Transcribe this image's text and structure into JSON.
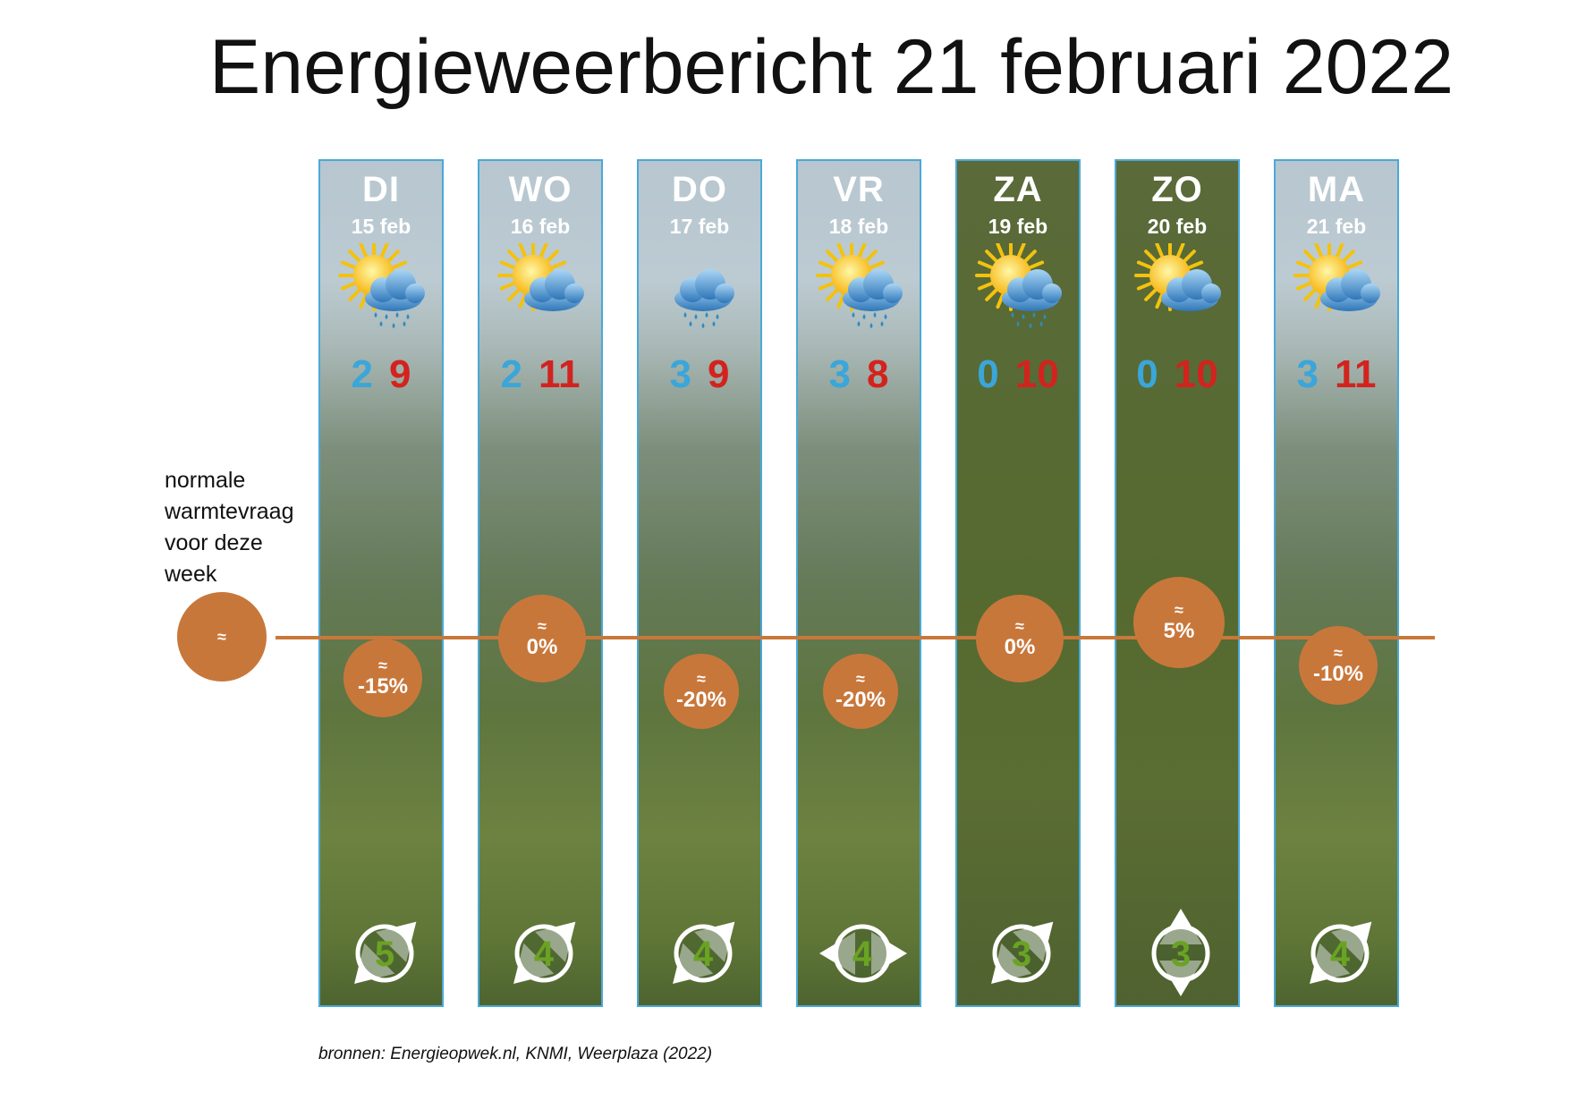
{
  "title": "Energieweerbericht 21 februari 2022",
  "normal_label": [
    "normale",
    "warmtevraag",
    "voor deze",
    "week"
  ],
  "normal_bubble": "≈",
  "approx_symbol": "≈",
  "source": "bronnen: Energieopwek.nl, KNMI, Weerplaza (2022)",
  "colors": {
    "tmin": "#3aa6d9",
    "tmax": "#d2231f",
    "bubble": "#c8773b",
    "wind_number": "#6aa323",
    "border": "#4aa9d8"
  },
  "days": [
    {
      "day": "DI",
      "date": "15 feb",
      "icon": "sun-cloud-rain-icon",
      "rain": true,
      "tmin": "2",
      "tmax": "9",
      "demand": "-15%",
      "demand_value": -15,
      "wind": "5",
      "wind_dir": "southwest",
      "weekend": false
    },
    {
      "day": "WO",
      "date": "16 feb",
      "icon": "sun-cloud-icon",
      "rain": false,
      "tmin": "2",
      "tmax": "11",
      "demand": "0%",
      "demand_value": 0,
      "wind": "4",
      "wind_dir": "southwest",
      "weekend": false
    },
    {
      "day": "DO",
      "date": "17 feb",
      "icon": "cloud-rain-icon",
      "rain": true,
      "tmin": "3",
      "tmax": "9",
      "demand": "-20%",
      "demand_value": -20,
      "wind": "4",
      "wind_dir": "southwest",
      "weekend": false
    },
    {
      "day": "VR",
      "date": "18 feb",
      "icon": "sun-cloud-rain-icon",
      "rain": true,
      "tmin": "3",
      "tmax": "8",
      "demand": "-20%",
      "demand_value": -20,
      "wind": "4",
      "wind_dir": "west",
      "weekend": false
    },
    {
      "day": "ZA",
      "date": "19 feb",
      "icon": "sun-cloud-rain-icon",
      "rain": true,
      "tmin": "0",
      "tmax": "10",
      "demand": "0%",
      "demand_value": 0,
      "wind": "3",
      "wind_dir": "southwest",
      "weekend": true
    },
    {
      "day": "ZO",
      "date": "20 feb",
      "icon": "sun-cloud-icon",
      "rain": false,
      "tmin": "0",
      "tmax": "10",
      "demand": "5%",
      "demand_value": 5,
      "wind": "3",
      "wind_dir": "south",
      "weekend": true
    },
    {
      "day": "MA",
      "date": "21 feb",
      "icon": "sun-cloud-icon",
      "rain": false,
      "tmin": "3",
      "tmax": "11",
      "demand": "-10%",
      "demand_value": -10,
      "wind": "4",
      "wind_dir": "southwest",
      "weekend": false
    }
  ]
}
